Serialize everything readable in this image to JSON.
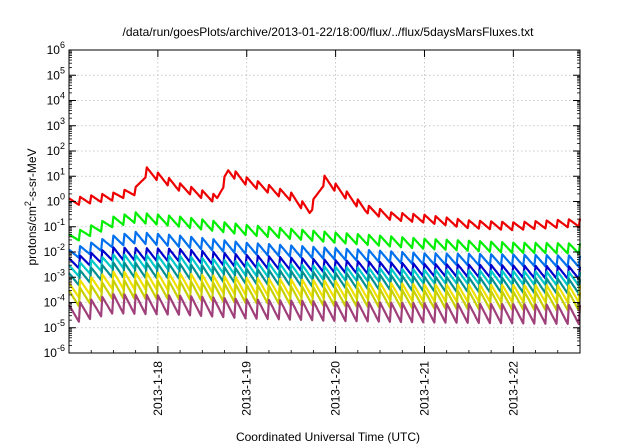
{
  "chart_data": {
    "type": "line",
    "title": "/data/run/goesPlots/archive/2013-01-22/18:00/flux/../flux/5daysMarsFluxes.txt",
    "xlabel": "Coordinated Universal Time (UTC)",
    "ylabel_main": "protons/cm",
    "ylabel_sup": "2",
    "ylabel_rest": "-s-sr-MeV",
    "yscale": "log",
    "ylim_exp": [
      -6,
      6
    ],
    "xlim": [
      "2013-01-17 00:00",
      "2013-01-22 18:00"
    ],
    "x_ticks": [
      "2013-1-18",
      "2013-1-19",
      "2013-1-20",
      "2013-1-21",
      "2013-1-22"
    ],
    "grid": true,
    "series": [
      {
        "color": "#ee0000",
        "sawtooth_period_h": 3,
        "x": [
          "2013-01-17 00:00",
          "2013-01-17 12:00",
          "2013-01-17 18:00",
          "2013-01-17 21:00",
          "2013-01-18 06:00",
          "2013-01-18 16:00",
          "2013-01-18 19:00",
          "2013-01-19 00:00",
          "2013-01-19 12:00",
          "2013-01-19 17:00",
          "2013-01-19 21:00",
          "2013-01-20 08:00",
          "2013-01-20 15:00",
          "2013-01-21 00:00",
          "2013-01-21 12:00",
          "2013-01-22 00:00",
          "2013-01-22 18:00"
        ],
        "y": [
          0.9,
          1.5,
          2.5,
          15,
          3.5,
          1.2,
          15,
          6,
          1.5,
          0.4,
          7,
          0.5,
          0.25,
          0.2,
          0.12,
          0.1,
          0.14
        ],
        "amp_frac": 0.35
      },
      {
        "color": "#00ee00",
        "sawtooth_period_h": 3,
        "x": [
          "2013-01-17 00:00",
          "2013-01-17 12:00",
          "2013-01-17 18:00",
          "2013-01-18 06:00",
          "2013-01-19 00:00",
          "2013-01-20 00:00",
          "2013-01-21 00:00",
          "2013-01-22 00:00",
          "2013-01-22 18:00"
        ],
        "y": [
          0.03,
          0.15,
          0.22,
          0.15,
          0.07,
          0.035,
          0.02,
          0.014,
          0.013
        ],
        "amp_frac": 0.45
      },
      {
        "color": "#0070ee",
        "sawtooth_period_h": 3,
        "x": [
          "2013-01-17 00:00",
          "2013-01-17 12:00",
          "2013-01-17 18:00",
          "2013-01-18 06:00",
          "2013-01-19 00:00",
          "2013-01-20 00:00",
          "2013-01-21 00:00",
          "2013-01-22 00:00",
          "2013-01-22 18:00"
        ],
        "y": [
          0.007,
          0.025,
          0.035,
          0.025,
          0.013,
          0.008,
          0.005,
          0.0045,
          0.004
        ],
        "amp_frac": 0.5
      },
      {
        "color": "#0000cc",
        "sawtooth_period_h": 3,
        "x": [
          "2013-01-17 00:00",
          "2013-01-17 12:00",
          "2013-01-18 06:00",
          "2013-01-19 00:00",
          "2013-01-20 00:00",
          "2013-01-21 00:00",
          "2013-01-22 18:00"
        ],
        "y": [
          0.003,
          0.008,
          0.007,
          0.004,
          0.0025,
          0.0018,
          0.0014
        ],
        "amp_frac": 0.55
      },
      {
        "color": "#00c8c8",
        "sawtooth_period_h": 3,
        "x": [
          "2013-01-17 00:00",
          "2013-01-17 12:00",
          "2013-01-18 06:00",
          "2013-01-19 00:00",
          "2013-01-20 00:00",
          "2013-01-21 00:00",
          "2013-01-22 18:00"
        ],
        "y": [
          0.0015,
          0.004,
          0.0035,
          0.002,
          0.0013,
          0.001,
          0.0008
        ],
        "amp_frac": 0.6
      },
      {
        "color": "#009090",
        "sawtooth_period_h": 3,
        "x": [
          "2013-01-17 00:00",
          "2013-01-17 12:00",
          "2013-01-18 06:00",
          "2013-01-19 00:00",
          "2013-01-20 00:00",
          "2013-01-21 00:00",
          "2013-01-22 18:00"
        ],
        "y": [
          0.0007,
          0.0018,
          0.0016,
          0.001,
          0.0007,
          0.0005,
          0.0004
        ],
        "amp_frac": 0.65
      },
      {
        "color": "#f0e000",
        "sawtooth_period_h": 3,
        "x": [
          "2013-01-17 00:00",
          "2013-01-17 12:00",
          "2013-01-18 06:00",
          "2013-01-19 00:00",
          "2013-01-20 00:00",
          "2013-01-21 00:00",
          "2013-01-22 18:00"
        ],
        "y": [
          0.00025,
          0.0007,
          0.0006,
          0.0004,
          0.0003,
          0.00022,
          0.0002
        ],
        "amp_frac": 0.75
      },
      {
        "color": "#c8d000",
        "sawtooth_period_h": 3,
        "x": [
          "2013-01-17 00:00",
          "2013-01-17 12:00",
          "2013-01-18 06:00",
          "2013-01-19 00:00",
          "2013-01-20 00:00",
          "2013-01-21 00:00",
          "2013-01-22 18:00"
        ],
        "y": [
          0.00012,
          0.0003,
          0.00028,
          0.0002,
          0.00015,
          0.00012,
          0.0001
        ],
        "amp_frac": 0.8
      },
      {
        "color": "#a0407a",
        "sawtooth_period_h": 3,
        "x": [
          "2013-01-17 00:00",
          "2013-01-17 12:00",
          "2013-01-18 06:00",
          "2013-01-19 00:00",
          "2013-01-20 00:00",
          "2013-01-21 00:00",
          "2013-01-22 18:00"
        ],
        "y": [
          3e-05,
          8e-05,
          7e-05,
          5e-05,
          4e-05,
          3.5e-05,
          3e-05
        ],
        "amp_frac": 0.85
      }
    ]
  }
}
